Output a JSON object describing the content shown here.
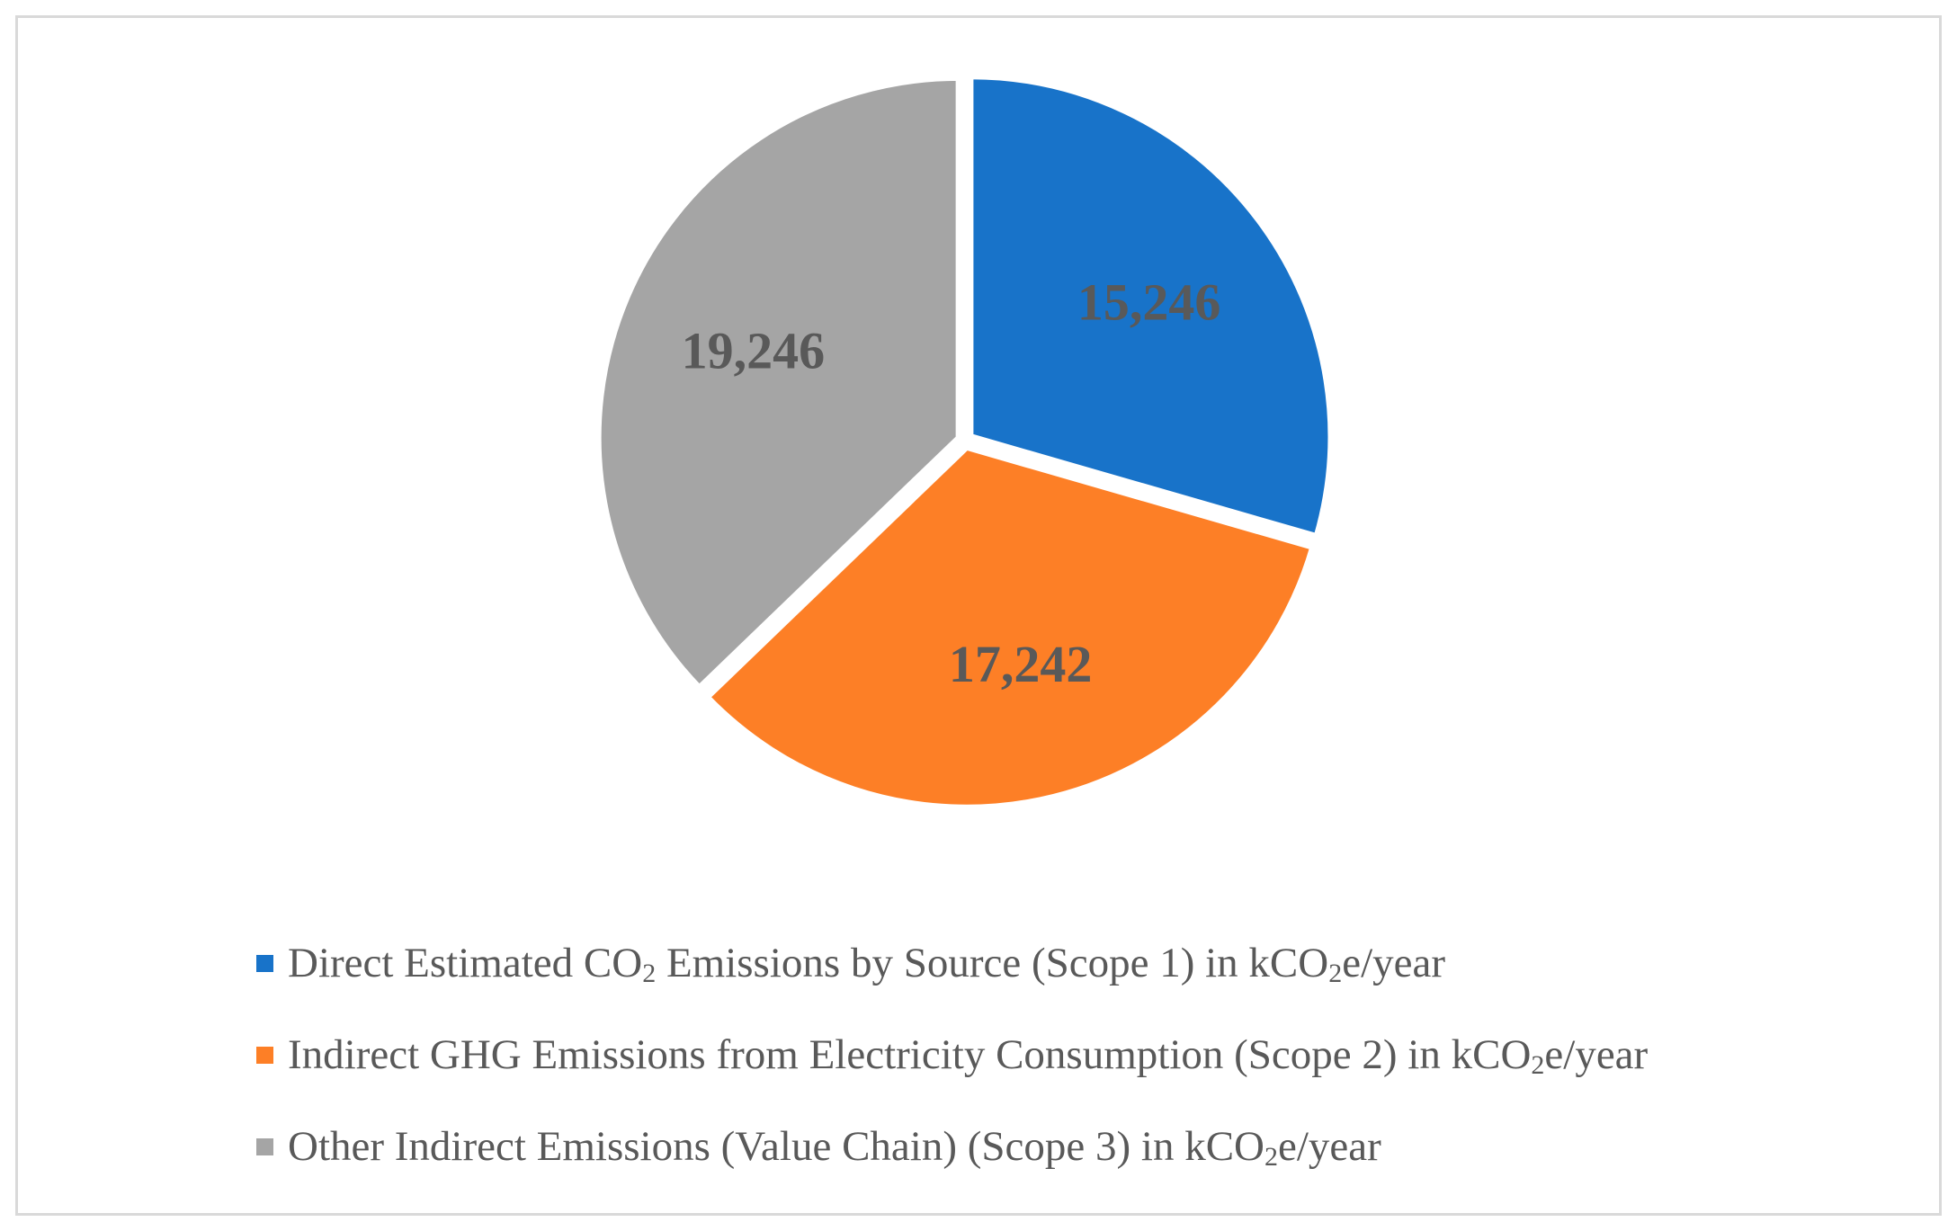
{
  "chart_data": {
    "type": "pie",
    "slices": [
      {
        "label": "Direct Estimated CO2 Emissions by Source  (Scope 1)  in kCO2e/year",
        "value": 15246,
        "value_label": "15,246",
        "color": "#1873c9",
        "legend_parts": [
          "Direct Estimated CO",
          "2",
          " Emissions by Source  (Scope 1)  in kCO",
          "2",
          "e/year"
        ]
      },
      {
        "label": "Indirect GHG Emissions from Electricity Consumption (Scope 2) in kCO2e/year",
        "value": 17242,
        "value_label": "17,242",
        "color": "#fd7f26",
        "legend_parts": [
          "Indirect GHG Emissions from Electricity Consumption (Scope 2) in kCO",
          "2",
          "e/year"
        ]
      },
      {
        "label": "Other Indirect Emissions (Value Chain) (Scope 3) in kCO2e/year",
        "value": 19246,
        "value_label": "19,246",
        "color": "#a5a5a5",
        "legend_parts": [
          "Other Indirect Emissions (Value Chain) (Scope 3) in kCO",
          "2",
          "e/year"
        ]
      }
    ],
    "start_angle": "12 o'clock, clockwise",
    "exploded": true,
    "legend_position": "bottom",
    "data_labels": "values inside slices"
  }
}
